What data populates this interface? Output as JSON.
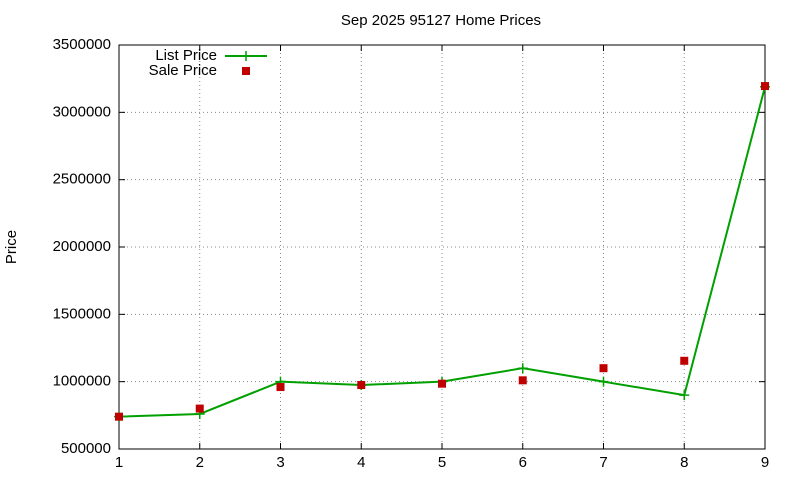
{
  "chart_data": {
    "type": "line",
    "title": "Sep 2025 95127 Home Prices",
    "ylabel": "Price",
    "x": [
      1,
      2,
      3,
      4,
      5,
      6,
      7,
      8,
      9
    ],
    "series": [
      {
        "name": "List Price",
        "color": "#00a000",
        "style": "linespoints",
        "values": [
          740000,
          760000,
          1000000,
          975000,
          1000000,
          1100000,
          1000000,
          900000,
          3190000
        ]
      },
      {
        "name": "Sale Price",
        "color": "#c00000",
        "style": "points",
        "values": [
          740000,
          800000,
          960000,
          975000,
          985000,
          1010000,
          1100000,
          1155000,
          3195000
        ]
      }
    ],
    "xlim": [
      1,
      9
    ],
    "xticks": [
      1,
      2,
      3,
      4,
      5,
      6,
      7,
      8,
      9
    ],
    "ylim": [
      500000,
      3500000
    ],
    "yticks": [
      500000,
      1000000,
      1500000,
      2000000,
      2500000,
      3000000,
      3500000
    ],
    "grid": true,
    "legend": "top-left"
  }
}
